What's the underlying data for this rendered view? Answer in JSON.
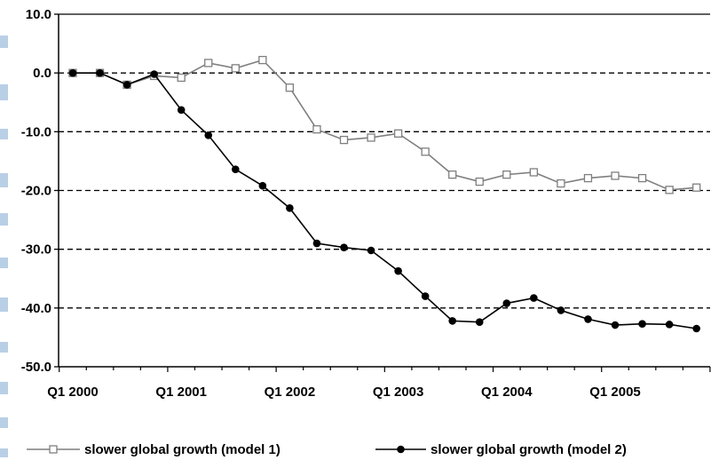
{
  "chart_data": {
    "type": "line",
    "title": "",
    "xlabel": "",
    "ylabel": "",
    "ylim": [
      -50,
      10
    ],
    "y_ticks": [
      10,
      0,
      -10,
      -20,
      -30,
      -40,
      -50
    ],
    "y_tick_labels": [
      "10.0",
      "0.0",
      "-10.0",
      "-20.0",
      "-30.0",
      "-40.0",
      "-50.0"
    ],
    "x_tick_labels": [
      "Q1 2000",
      "Q1 2001",
      "Q1 2002",
      "Q1 2003",
      "Q1 2004",
      "Q1 2005"
    ],
    "x_tick_quarter_index": [
      0,
      4,
      8,
      12,
      16,
      20
    ],
    "quarters_count": 24,
    "grid": "horizontal dashed",
    "legend_position": "bottom",
    "series": [
      {
        "name": "slower global growth (model 1)",
        "marker": "open-square",
        "color": "#7f7f7f",
        "values": [
          0.0,
          0.0,
          -2.0,
          -0.5,
          -0.8,
          1.7,
          0.8,
          2.2,
          -2.5,
          -9.6,
          -11.4,
          -11.0,
          -10.3,
          -13.4,
          -17.3,
          -18.5,
          -17.3,
          -16.9,
          -18.8,
          -17.9,
          -17.5,
          -17.9,
          -19.9,
          -19.5
        ]
      },
      {
        "name": "slower global growth (model 2)",
        "marker": "filled-circle",
        "color": "#000000",
        "values": [
          0.0,
          0.0,
          -2.0,
          -0.2,
          -6.3,
          -10.6,
          -16.4,
          -19.2,
          -23.0,
          -29.0,
          -29.7,
          -30.2,
          -33.7,
          -38.0,
          -42.2,
          -42.4,
          -39.2,
          -38.3,
          -40.4,
          -41.9,
          -42.9,
          -42.7,
          -42.8,
          -43.5
        ]
      }
    ]
  },
  "colors": {
    "axis": "#000000",
    "grid": "#000000",
    "edge_marks": "#b9cfe6"
  }
}
